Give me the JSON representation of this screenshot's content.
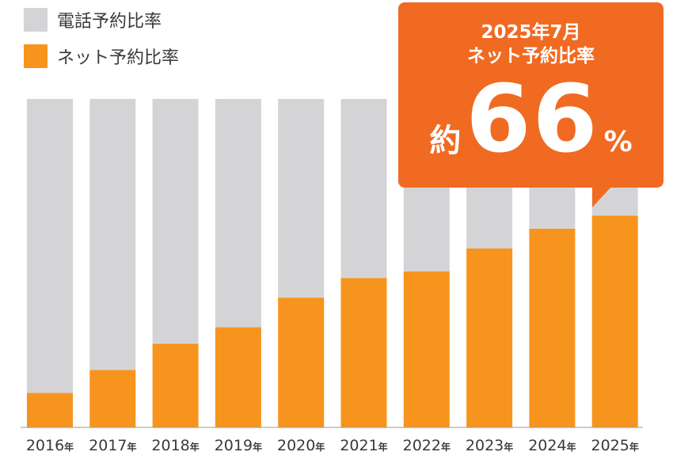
{
  "legend": [
    {
      "label": "電話予約比率",
      "color": "#d4d4d6"
    },
    {
      "label": "ネット予約比率",
      "color": "#f7941d"
    }
  ],
  "callout": {
    "line1": "2025年7月",
    "line2": "ネット予約比率",
    "prefix": "約",
    "value": "66",
    "unit": "%",
    "color": "#f06a22"
  },
  "chart_data": {
    "type": "bar",
    "stacked": true,
    "categories": [
      "2016",
      "2017",
      "2018",
      "2019",
      "2020",
      "2021",
      "2022",
      "2023",
      "2024",
      "2025"
    ],
    "category_suffix": "年",
    "series": [
      {
        "name": "ネット予約比率",
        "values": [
          10.5,
          17.5,
          25.5,
          30.5,
          39.5,
          45.5,
          47.5,
          54.5,
          60.5,
          64.5
        ],
        "color": "#f7941d"
      },
      {
        "name": "電話予約比率",
        "values": [
          89.5,
          82.5,
          74.5,
          69.5,
          60.5,
          54.5,
          52.5,
          45.5,
          39.5,
          35.5
        ],
        "color": "#d4d4d6"
      }
    ],
    "ylim": [
      0,
      100
    ],
    "grid": false,
    "legend_position": "top-left"
  }
}
